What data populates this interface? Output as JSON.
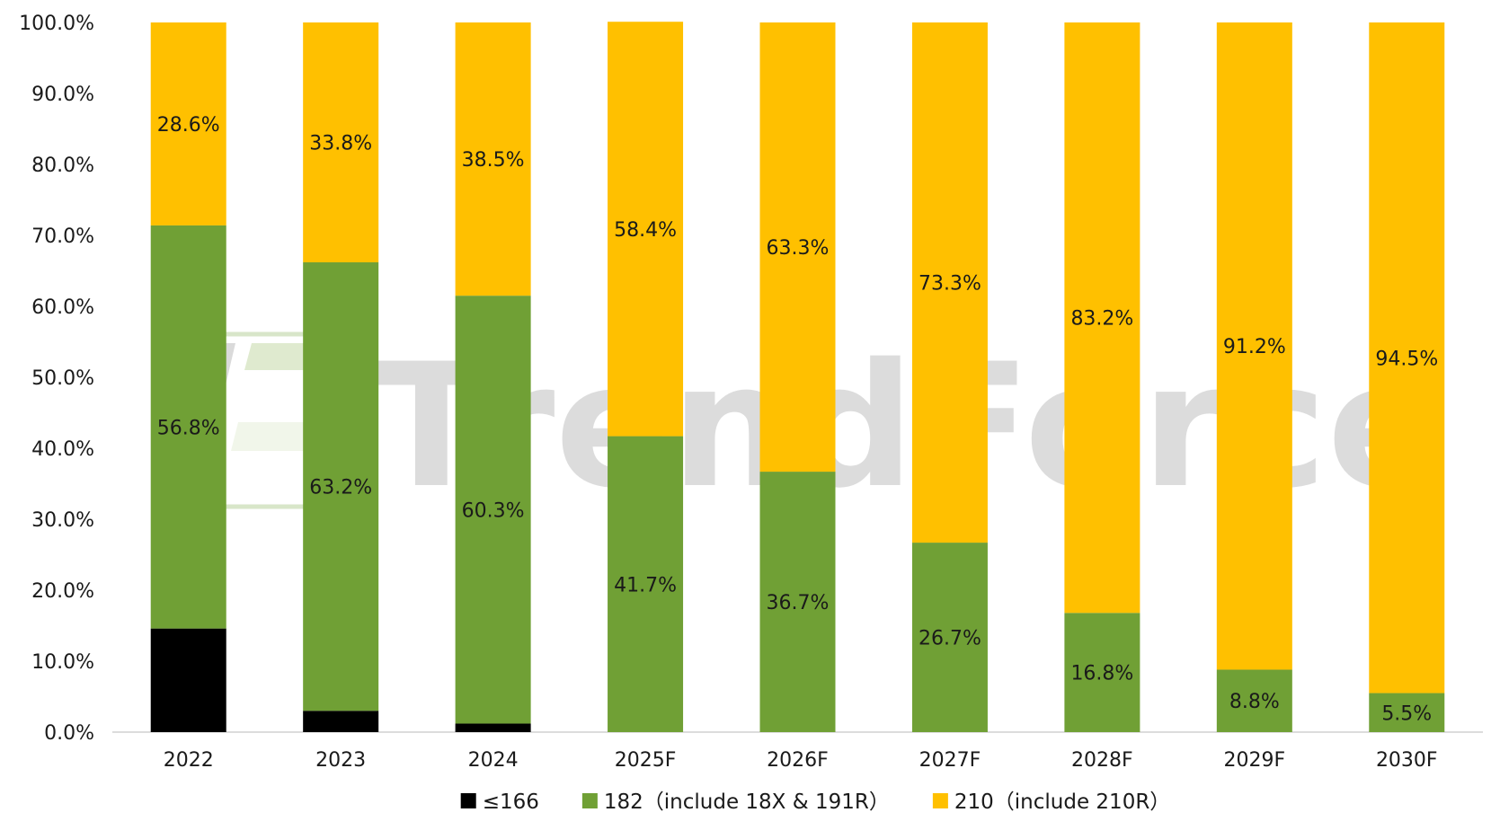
{
  "chart_data": {
    "type": "bar",
    "stacked": true,
    "categories": [
      "2022",
      "2023",
      "2024",
      "2025F",
      "2026F",
      "2027F",
      "2028F",
      "2029F",
      "2030F"
    ],
    "series": [
      {
        "name": "≤166",
        "color": "#000000",
        "values": [
          14.6,
          3.0,
          1.2,
          0,
          0,
          0,
          0,
          0,
          0
        ],
        "labels": [
          "",
          "",
          "",
          "",
          "",
          "",
          "",
          "",
          ""
        ]
      },
      {
        "name": "182（include 18X & 191R）",
        "color": "#70a035",
        "values": [
          56.8,
          63.2,
          60.3,
          41.7,
          36.7,
          26.7,
          16.8,
          8.8,
          5.5
        ],
        "labels": [
          "56.8%",
          "63.2%",
          "60.3%",
          "41.7%",
          "36.7%",
          "26.7%",
          "16.8%",
          "8.8%",
          "5.5%"
        ]
      },
      {
        "name": "210（include 210R）",
        "color": "#ffc000",
        "values": [
          28.6,
          33.8,
          38.5,
          58.4,
          63.3,
          73.3,
          83.2,
          91.2,
          94.5
        ],
        "labels": [
          "28.6%",
          "33.8%",
          "38.5%",
          "58.4%",
          "63.3%",
          "73.3%",
          "83.2%",
          "91.2%",
          "94.5%"
        ]
      }
    ],
    "ylim": [
      0,
      100
    ],
    "yticks": [
      "0.0%",
      "10.0%",
      "20.0%",
      "30.0%",
      "40.0%",
      "50.0%",
      "60.0%",
      "70.0%",
      "80.0%",
      "90.0%",
      "100.0%"
    ],
    "legend_position": "bottom-center",
    "grid": false
  },
  "watermark": {
    "text": "TrendForce"
  }
}
